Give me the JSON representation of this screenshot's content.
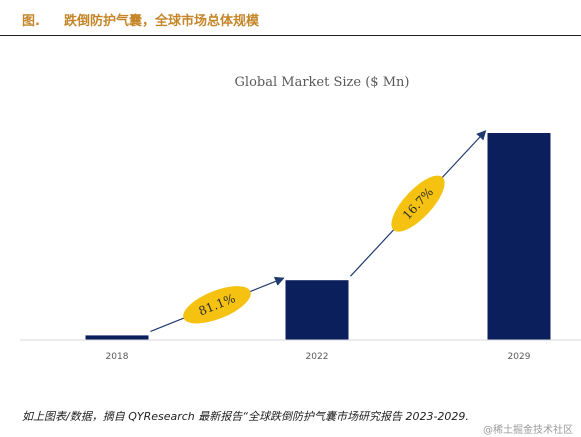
{
  "header": {
    "figure_label": "图.",
    "figure_title": "跌倒防护气囊，全球市场总体规模"
  },
  "chart_data": {
    "type": "bar",
    "title": "Global Market Size ($ Mn)",
    "categories": [
      "2018",
      "2022",
      "2029"
    ],
    "values": [
      2,
      26,
      90
    ],
    "ylim": [
      0,
      100
    ],
    "grid": false,
    "legend": "none",
    "bar_color": "#0b1f5c",
    "annotations": [
      {
        "text": "81.1%",
        "from": "2018",
        "to": "2022",
        "color": "#f5c211"
      },
      {
        "text": "16.7%",
        "from": "2022",
        "to": "2029",
        "color": "#f5c211"
      }
    ]
  },
  "source_note": "如上图表/数据，摘自 QYResearch 最新报告“全球跌倒防护气囊市场研究报告 2023-2029.",
  "watermark": "@稀土掘金技术社区"
}
